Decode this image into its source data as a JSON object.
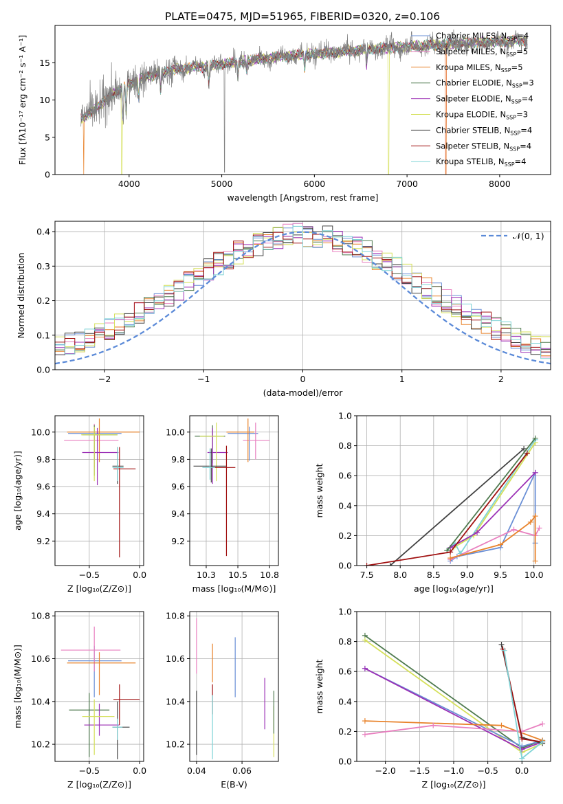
{
  "figure_title": "PLATE=0475, MJD=51965, FIBERID=0320, z=0.106",
  "colors": {
    "Chabrier MILES": "#6a8fd6",
    "Salpeter MILES": "#e87fbf",
    "Kroupa MILES": "#e8822a",
    "Chabrier ELODIE": "#4f7a4f",
    "Salpeter ELODIE": "#9b2fb5",
    "Kroupa ELODIE": "#d5e05a",
    "Chabrier STELIB": "#404040",
    "Salpeter STELIB": "#a01010",
    "Kroupa STELIB": "#7fd3d6",
    "gaussian": "#5b8ad8",
    "data": "#808080"
  },
  "chart_data": [
    {
      "type": "line",
      "id": "spectrum",
      "title": "PLATE=0475, MJD=51965, FIBERID=0320, z=0.106",
      "xlabel": "wavelength [Angstrom, rest frame]",
      "ylabel": "Flux [fλ10⁻¹⁷ erg cm⁻² s⁻¹ A⁻¹]",
      "xlim": [
        3200,
        8550
      ],
      "ylim": [
        0,
        20
      ],
      "xticks": [
        4000,
        5000,
        6000,
        7000,
        8000
      ],
      "yticks": [
        0,
        5,
        10,
        15
      ],
      "legend_position": "top-right",
      "legend": [
        {
          "base": "Chabrier MILES",
          "nssp": "4"
        },
        {
          "base": "Salpeter MILES",
          "nssp": "5"
        },
        {
          "base": "Kroupa MILES",
          "nssp": "5"
        },
        {
          "base": "Chabrier ELODIE",
          "nssp": "3"
        },
        {
          "base": "Salpeter ELODIE",
          "nssp": "4"
        },
        {
          "base": "Kroupa ELODIE",
          "nssp": "3"
        },
        {
          "base": "Chabrier STELIB",
          "nssp": "4"
        },
        {
          "base": "Salpeter STELIB",
          "nssp": "4"
        },
        {
          "base": "Kroupa STELIB",
          "nssp": "4"
        }
      ],
      "continuum": [
        [
          3500,
          7.5
        ],
        [
          3700,
          9.5
        ],
        [
          3900,
          11.5
        ],
        [
          4100,
          12.8
        ],
        [
          4300,
          13.5
        ],
        [
          4500,
          14.1
        ],
        [
          4800,
          14.5
        ],
        [
          5000,
          14.8
        ],
        [
          5300,
          15.3
        ],
        [
          5600,
          15.8
        ],
        [
          6000,
          16.2
        ],
        [
          6400,
          16.6
        ],
        [
          6800,
          17.0
        ],
        [
          7200,
          17.3
        ],
        [
          7600,
          17.6
        ],
        [
          8000,
          17.8
        ],
        [
          8300,
          18.0
        ]
      ],
      "data_range": [
        3480,
        8300
      ],
      "dropouts": [
        {
          "series": "Kroupa MILES",
          "x": 3510
        },
        {
          "series": "Kroupa ELODIE",
          "x": 3920
        },
        {
          "series": "Kroupa ELODIE",
          "x": 6800
        },
        {
          "series": "Salpeter MILES",
          "x": 7420
        },
        {
          "series": "Kroupa MILES",
          "x": 7420
        }
      ],
      "spikes_down": [
        [
          5030,
          0.3
        ]
      ]
    },
    {
      "type": "step",
      "id": "residuals",
      "xlabel": "(data-model)/error",
      "ylabel": "Normed distribution",
      "xlim": [
        -2.5,
        2.5
      ],
      "ylim": [
        0,
        0.43
      ],
      "xticks": [
        -2,
        -1,
        0,
        1,
        2
      ],
      "yticks": [
        0.0,
        0.1,
        0.2,
        0.3,
        0.4
      ],
      "grid": true,
      "gaussian_label": "𝒩(0, 1)",
      "legend_position": "top-right",
      "bin_width": 0.1
    },
    {
      "type": "errorbar",
      "id": "age-vs-z",
      "xlabel": "Z [log₁₀(Z/Z⊙)]",
      "ylabel": "age  [log₁₀(age/yr)]",
      "xlim": [
        -0.84,
        0.04
      ],
      "ylim": [
        9.02,
        10.12
      ],
      "xticks": [
        -0.5,
        0.0
      ],
      "yticks": [
        9.2,
        9.4,
        9.6,
        9.8,
        10.0
      ],
      "grid": true,
      "points": [
        {
          "series": "Chabrier MILES",
          "x": -0.45,
          "xerr": [
            0.26,
            0.27
          ],
          "y": 9.99,
          "yerr": [
            0.2,
            0.05
          ]
        },
        {
          "series": "Salpeter MILES",
          "x": -0.45,
          "xerr": [
            0.3,
            0.24
          ],
          "y": 9.94,
          "yerr": [
            0.2,
            0.12
          ]
        },
        {
          "series": "Kroupa MILES",
          "x": -0.4,
          "xerr": [
            0.32,
            0.4
          ],
          "y": 10.0,
          "yerr": [
            0.22,
            0.1
          ]
        },
        {
          "series": "Chabrier ELODIE",
          "x": -0.45,
          "xerr": [
            0.12,
            0.23
          ],
          "y": 9.98,
          "yerr": [
            0.3,
            0.07
          ]
        },
        {
          "series": "Salpeter ELODIE",
          "x": -0.42,
          "xerr": [
            0.15,
            0.21
          ],
          "y": 9.85,
          "yerr": [
            0.24,
            0.18
          ]
        },
        {
          "series": "Kroupa ELODIE",
          "x": -0.45,
          "xerr": [
            0.13,
            0.23
          ],
          "y": 9.98,
          "yerr": [
            0.34,
            0.06
          ]
        },
        {
          "series": "Chabrier STELIB",
          "x": -0.22,
          "xerr": [
            0.05,
            0.06
          ],
          "y": 9.75,
          "yerr": [
            0.13,
            0.14
          ]
        },
        {
          "series": "Salpeter STELIB",
          "x": -0.2,
          "xerr": [
            0.06,
            0.16
          ],
          "y": 9.73,
          "yerr": [
            0.65,
            0.16
          ]
        },
        {
          "series": "Kroupa STELIB",
          "x": -0.22,
          "xerr": [
            0.05,
            0.06
          ],
          "y": 9.74,
          "yerr": [
            0.1,
            0.15
          ]
        }
      ]
    },
    {
      "type": "errorbar",
      "id": "age-vs-mass",
      "xlabel": "mass [log₁₀(M/M⊙)]",
      "ylabel": "",
      "xlim": [
        10.12,
        10.82
      ],
      "ylim": [
        9.02,
        10.12
      ],
      "xticks": [
        10.25,
        10.5,
        10.75
      ],
      "yticks": [
        9.2,
        9.4,
        9.6,
        9.8,
        10.0
      ],
      "grid": true,
      "points": [
        {
          "series": "Chabrier MILES",
          "x": 10.59,
          "xerr": [
            0.17,
            0.07
          ],
          "y": 9.99,
          "yerr": [
            0.2,
            0.05
          ]
        },
        {
          "series": "Salpeter MILES",
          "x": 10.64,
          "xerr": [
            0.1,
            0.11
          ],
          "y": 9.94,
          "yerr": [
            0.14,
            0.13
          ]
        },
        {
          "series": "Kroupa MILES",
          "x": 10.58,
          "xerr": [
            0.17,
            0.05
          ],
          "y": 10.0,
          "yerr": [
            0.22,
            0.1
          ]
        },
        {
          "series": "Chabrier ELODIE",
          "x": 10.3,
          "xerr": [
            0.14,
            0.1
          ],
          "y": 9.97,
          "yerr": [
            0.2,
            0.08
          ]
        },
        {
          "series": "Salpeter ELODIE",
          "x": 10.3,
          "xerr": [
            0.04,
            0.12
          ],
          "y": 9.85,
          "yerr": [
            0.23,
            0.18
          ]
        },
        {
          "series": "Kroupa ELODIE",
          "x": 10.33,
          "xerr": [
            0.13,
            0.06
          ],
          "y": 9.97,
          "yerr": [
            0.33,
            0.1
          ]
        },
        {
          "series": "Chabrier STELIB",
          "x": 10.29,
          "xerr": [
            0.14,
            0.12
          ],
          "y": 9.75,
          "yerr": [
            0.12,
            0.13
          ]
        },
        {
          "series": "Salpeter STELIB",
          "x": 10.41,
          "xerr": [
            0.12,
            0.07
          ],
          "y": 9.74,
          "yerr": [
            0.65,
            0.16
          ]
        },
        {
          "series": "Kroupa STELIB",
          "x": 10.28,
          "xerr": [
            0.06,
            0.04
          ],
          "y": 9.74,
          "yerr": [
            0.09,
            0.14
          ]
        }
      ]
    },
    {
      "type": "line",
      "id": "weight-vs-age",
      "xlabel": "age  [log₁₀(age/yr)]",
      "ylabel": "mass weight",
      "xlim": [
        7.35,
        10.25
      ],
      "ylim": [
        0,
        1.0
      ],
      "xticks": [
        7.5,
        8.0,
        8.5,
        9.0,
        9.5,
        10.0
      ],
      "yticks": [
        0.0,
        0.2,
        0.4,
        0.6,
        0.8,
        1.0
      ],
      "grid": true,
      "series": [
        {
          "name": "Kroupa ELODIE",
          "x": [
            8.8,
            9.1,
            10.02
          ],
          "y": [
            0.12,
            0.2,
            0.82
          ]
        },
        {
          "name": "Kroupa STELIB",
          "x": [
            8.7,
            8.82,
            8.9,
            10.02
          ],
          "y": [
            0.1,
            0.15,
            0.08,
            0.84
          ]
        },
        {
          "name": "Chabrier MILES",
          "x": [
            8.75,
            8.85,
            9.5,
            10.02,
            10.02
          ],
          "y": [
            0.03,
            0.06,
            0.12,
            0.62,
            0.15
          ]
        },
        {
          "name": "Salpeter MILES",
          "x": [
            8.75,
            9.7,
            10.02,
            10.08
          ],
          "y": [
            0.04,
            0.24,
            0.2,
            0.25
          ]
        },
        {
          "name": "Kroupa MILES",
          "x": [
            8.75,
            9.5,
            9.95,
            10.02,
            10.02
          ],
          "y": [
            0.05,
            0.14,
            0.29,
            0.33,
            0.03
          ]
        },
        {
          "name": "Salpeter ELODIE",
          "x": [
            8.75,
            9.15,
            10.02
          ],
          "y": [
            0.12,
            0.22,
            0.62
          ]
        },
        {
          "name": "Chabrier STELIB",
          "x": [
            7.85,
            9.85
          ],
          "y": [
            0.0,
            0.78
          ]
        },
        {
          "name": "Chabrier ELODIE",
          "x": [
            8.7,
            10.02
          ],
          "y": [
            0.1,
            0.85
          ]
        },
        {
          "name": "Salpeter STELIB",
          "x": [
            7.5,
            8.75,
            9.9
          ],
          "y": [
            0.0,
            0.09,
            0.75
          ]
        }
      ]
    },
    {
      "type": "errorbar",
      "id": "mass-vs-z",
      "xlabel": "Z [log₁₀(Z/Z⊙)]",
      "ylabel": "mass [log₁₀(M/M⊙)]",
      "xlim": [
        -0.84,
        0.04
      ],
      "ylim": [
        10.12,
        10.82
      ],
      "xticks": [
        -0.5,
        0.0
      ],
      "yticks": [
        10.2,
        10.4,
        10.6,
        10.8
      ],
      "grid": true,
      "points": [
        {
          "series": "Chabrier MILES",
          "x": -0.45,
          "xerr": [
            0.26,
            0.27
          ],
          "y": 10.59,
          "yerr": [
            0.17,
            0.07
          ]
        },
        {
          "series": "Salpeter MILES",
          "x": -0.45,
          "xerr": [
            0.33,
            0.26
          ],
          "y": 10.64,
          "yerr": [
            0.1,
            0.11
          ]
        },
        {
          "series": "Kroupa MILES",
          "x": -0.4,
          "xerr": [
            0.32,
            0.36
          ],
          "y": 10.58,
          "yerr": [
            0.15,
            0.05
          ]
        },
        {
          "series": "Chabrier ELODIE",
          "x": -0.5,
          "xerr": [
            0.2,
            0.2
          ],
          "y": 10.36,
          "yerr": [
            0.22,
            0.08
          ]
        },
        {
          "series": "Salpeter ELODIE",
          "x": -0.4,
          "xerr": [
            0.15,
            0.2
          ],
          "y": 10.29,
          "yerr": [
            0.05,
            0.1
          ]
        },
        {
          "series": "Kroupa ELODIE",
          "x": -0.45,
          "xerr": [
            0.12,
            0.2
          ],
          "y": 10.33,
          "yerr": [
            0.18,
            0.08
          ]
        },
        {
          "series": "Chabrier STELIB",
          "x": -0.22,
          "xerr": [
            0.05,
            0.12
          ],
          "y": 10.28,
          "yerr": [
            0.15,
            0.12
          ]
        },
        {
          "series": "Salpeter STELIB",
          "x": -0.2,
          "xerr": [
            0.06,
            0.2
          ],
          "y": 10.41,
          "yerr": [
            0.12,
            0.07
          ]
        },
        {
          "series": "Kroupa STELIB",
          "x": -0.22,
          "xerr": [
            0.05,
            0.05
          ],
          "y": 10.28,
          "yerr": [
            0.06,
            0.04
          ]
        }
      ]
    },
    {
      "type": "errorbar",
      "id": "mass-vs-ebv",
      "xlabel": "E(B-V)",
      "ylabel": "",
      "xlim": [
        0.037,
        0.076
      ],
      "ylim": [
        10.12,
        10.82
      ],
      "xticks": [
        0.04,
        0.06
      ],
      "yticks": [
        10.2,
        10.4,
        10.6,
        10.8
      ],
      "grid": true,
      "points": [
        {
          "series": "Salpeter MILES",
          "x": 0.04,
          "y": 10.66,
          "yerr": [
            0.13,
            0.13
          ]
        },
        {
          "series": "Chabrier STELIB",
          "x": 0.04,
          "y": 10.3,
          "yerr": [
            0.15,
            0.15
          ]
        },
        {
          "series": "Kroupa MILES",
          "x": 0.047,
          "y": 10.58,
          "yerr": [
            0.09,
            0.09
          ]
        },
        {
          "series": "Salpeter STELIB",
          "x": 0.047,
          "y": 10.41,
          "yerr": [
            0.07,
            0.07
          ]
        },
        {
          "series": "Kroupa STELIB",
          "x": 0.047,
          "y": 10.28,
          "yerr": [
            0.15,
            0.15
          ]
        },
        {
          "series": "Chabrier MILES",
          "x": 0.057,
          "y": 10.56,
          "yerr": [
            0.14,
            0.14
          ]
        },
        {
          "series": "Salpeter ELODIE",
          "x": 0.07,
          "y": 10.39,
          "yerr": [
            0.12,
            0.12
          ]
        },
        {
          "series": "Kroupa ELODIE",
          "x": 0.074,
          "y": 10.26,
          "yerr": [
            0.12,
            0.12
          ]
        },
        {
          "series": "Chabrier ELODIE",
          "x": 0.074,
          "y": 10.35,
          "yerr": [
            0.1,
            0.1
          ]
        }
      ]
    },
    {
      "type": "line",
      "id": "weight-vs-z",
      "xlabel": "Z [log₁₀(Z/Z⊙)]",
      "ylabel": "mass weight",
      "xlim": [
        -2.42,
        0.42
      ],
      "ylim": [
        0,
        1.0
      ],
      "xticks": [
        -2.0,
        -1.5,
        -1.0,
        -0.5,
        0.0
      ],
      "yticks": [
        0.0,
        0.2,
        0.4,
        0.6,
        0.8,
        1.0
      ],
      "grid": true,
      "series": [
        {
          "name": "Chabrier ELODIE",
          "x": [
            -2.3,
            0.0,
            0.3
          ],
          "y": [
            0.84,
            0.09,
            0.14
          ]
        },
        {
          "name": "Kroupa ELODIE",
          "x": [
            -2.3,
            0.0,
            0.3
          ],
          "y": [
            0.81,
            0.06,
            0.12
          ]
        },
        {
          "name": "Chabrier MILES",
          "x": [
            -2.3,
            0.0,
            0.3
          ],
          "y": [
            0.62,
            0.1,
            0.14
          ]
        },
        {
          "name": "Salpeter ELODIE",
          "x": [
            -2.3,
            0.0,
            0.3
          ],
          "y": [
            0.62,
            0.08,
            0.13
          ]
        },
        {
          "name": "Kroupa MILES",
          "x": [
            -2.3,
            -0.3,
            0.3
          ],
          "y": [
            0.27,
            0.24,
            0.14
          ]
        },
        {
          "name": "Salpeter MILES",
          "x": [
            -2.3,
            -1.3,
            0.0,
            0.3
          ],
          "y": [
            0.18,
            0.24,
            0.2,
            0.25
          ]
        },
        {
          "name": "Chabrier STELIB",
          "x": [
            -0.3,
            0.0,
            0.3
          ],
          "y": [
            0.78,
            0.16,
            0.12
          ]
        },
        {
          "name": "Salpeter STELIB",
          "x": [
            -0.28,
            0.0,
            0.3
          ],
          "y": [
            0.75,
            0.15,
            0.13
          ]
        },
        {
          "name": "Kroupa STELIB",
          "x": [
            -0.26,
            0.0,
            0.3
          ],
          "y": [
            0.74,
            0.02,
            0.13
          ]
        }
      ]
    }
  ]
}
